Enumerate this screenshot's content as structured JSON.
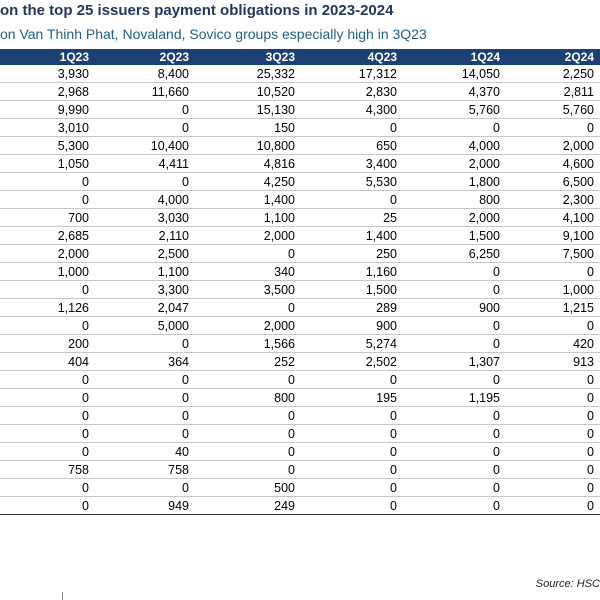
{
  "header": {
    "title": "on the top 25 issuers payment obligations in 2023-2024",
    "subtitle": "on Van Thinh Phat, Novaland, Sovico groups especially high in 3Q23"
  },
  "table": {
    "columns": [
      "1Q23",
      "2Q23",
      "3Q23",
      "4Q23",
      "1Q24",
      "2Q24"
    ],
    "rows": [
      [
        "3,930",
        "8,400",
        "25,332",
        "17,312",
        "14,050",
        "2,250"
      ],
      [
        "2,968",
        "11,660",
        "10,520",
        "2,830",
        "4,370",
        "2,811"
      ],
      [
        "9,990",
        "0",
        "15,130",
        "4,300",
        "5,760",
        "5,760"
      ],
      [
        "3,010",
        "0",
        "150",
        "0",
        "0",
        "0"
      ],
      [
        "5,300",
        "10,400",
        "10,800",
        "650",
        "4,000",
        "2,000"
      ],
      [
        "1,050",
        "4,411",
        "4,816",
        "3,400",
        "2,000",
        "4,600"
      ],
      [
        "0",
        "0",
        "4,250",
        "5,530",
        "1,800",
        "6,500"
      ],
      [
        "0",
        "4,000",
        "1,400",
        "0",
        "800",
        "2,300"
      ],
      [
        "700",
        "3,030",
        "1,100",
        "25",
        "2,000",
        "4,100"
      ],
      [
        "2,685",
        "2,110",
        "2,000",
        "1,400",
        "1,500",
        "9,100"
      ],
      [
        "2,000",
        "2,500",
        "0",
        "250",
        "6,250",
        "7,500"
      ],
      [
        "1,000",
        "1,100",
        "340",
        "1,160",
        "0",
        "0"
      ],
      [
        "0",
        "3,300",
        "3,500",
        "1,500",
        "0",
        "1,000"
      ],
      [
        "1,126",
        "2,047",
        "0",
        "289",
        "900",
        "1,215"
      ],
      [
        "0",
        "5,000",
        "2,000",
        "900",
        "0",
        "0"
      ],
      [
        "200",
        "0",
        "1,566",
        "5,274",
        "0",
        "420"
      ],
      [
        "404",
        "364",
        "252",
        "2,502",
        "1,307",
        "913"
      ],
      [
        "0",
        "0",
        "0",
        "0",
        "0",
        "0"
      ],
      [
        "0",
        "0",
        "800",
        "195",
        "1,195",
        "0"
      ],
      [
        "0",
        "0",
        "0",
        "0",
        "0",
        "0"
      ],
      [
        "0",
        "0",
        "0",
        "0",
        "0",
        "0"
      ],
      [
        "0",
        "40",
        "0",
        "0",
        "0",
        "0"
      ],
      [
        "758",
        "758",
        "0",
        "0",
        "0",
        "0"
      ],
      [
        "0",
        "0",
        "500",
        "0",
        "0",
        "0"
      ],
      [
        "0",
        "949",
        "249",
        "0",
        "0",
        "0"
      ]
    ]
  },
  "footer": {
    "source": "Source: HSC"
  },
  "colors": {
    "header_bg": "#1c3f74",
    "title": "#1f3864",
    "subtitle": "#1f5f8b"
  }
}
